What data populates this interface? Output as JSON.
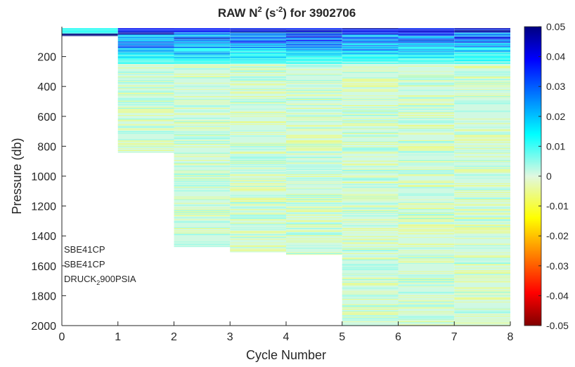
{
  "chart_data": {
    "type": "heatmap",
    "title": {
      "prefix": "RAW N",
      "sup1": "2",
      "mid": " (s",
      "sup2": "-2",
      "suffix": ") for 3902706"
    },
    "xlabel": "Cycle Number",
    "ylabel": "Pressure (db)",
    "xlim": [
      0,
      8
    ],
    "ylim": [
      2000,
      0
    ],
    "y_reversed": true,
    "x_ticks": [
      "0",
      "1",
      "2",
      "3",
      "4",
      "5",
      "6",
      "7",
      "8"
    ],
    "y_ticks": [
      "200",
      "400",
      "600",
      "800",
      "1000",
      "1200",
      "1400",
      "1600",
      "1800",
      "2000"
    ],
    "colorbar": {
      "range": [
        -0.05,
        0.05
      ],
      "ticks": [
        "0.05",
        "0.04",
        "0.03",
        "0.02",
        "0.01",
        "0",
        "-0.01",
        "-0.02",
        "-0.03",
        "-0.04",
        "-0.05"
      ],
      "colormap": "jet"
    },
    "profiles": [
      {
        "cycle_start": 0,
        "cycle_end": 1,
        "p_min": 10,
        "p_max": 60
      },
      {
        "cycle_start": 1,
        "cycle_end": 2,
        "p_min": 10,
        "p_max": 845
      },
      {
        "cycle_start": 2,
        "cycle_end": 3,
        "p_min": 10,
        "p_max": 1475
      },
      {
        "cycle_start": 3,
        "cycle_end": 4,
        "p_min": 10,
        "p_max": 1510
      },
      {
        "cycle_start": 4,
        "cycle_end": 5,
        "p_min": 10,
        "p_max": 1525
      },
      {
        "cycle_start": 5,
        "cycle_end": 6,
        "p_min": 10,
        "p_max": 2000
      },
      {
        "cycle_start": 6,
        "cycle_end": 7,
        "p_min": 10,
        "p_max": 2000
      },
      {
        "cycle_start": 7,
        "cycle_end": 8,
        "p_min": 10,
        "p_max": 2000
      }
    ],
    "sensor_labels": [
      "SBE41CP",
      "SBE41CP"
    ],
    "pressure_sensor": {
      "main": "DRUCK",
      "sub": "2",
      "rest": "900PSIA"
    }
  }
}
